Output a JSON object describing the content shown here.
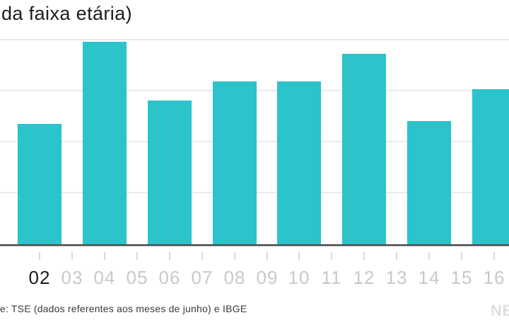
{
  "header": {
    "title": "da faixa etária)"
  },
  "chart_data": {
    "type": "bar",
    "title": "da faixa etária)",
    "x_tick_labels": [
      "02",
      "03",
      "04",
      "05",
      "06",
      "07",
      "08",
      "09",
      "10",
      "11",
      "12",
      "13",
      "14",
      "15",
      "16"
    ],
    "highlighted_tick_label": "02",
    "categories": [
      "02",
      "04",
      "06",
      "08",
      "10",
      "12",
      "14",
      "16"
    ],
    "values": [
      2.36,
      3.97,
      2.82,
      3.19,
      3.19,
      3.74,
      2.42,
      3.04
    ],
    "value_unit": "gridline intervals (y-axis scale cropped out of frame)",
    "ylim": [
      0,
      4.2
    ],
    "grid": true,
    "gridline_count": 4,
    "legend": "none",
    "bar_color": "#2ac4ca"
  },
  "footer": {
    "source": "e: TSE (dados referentes aos meses de junho) e IBGE",
    "watermark": "NE"
  },
  "colors": {
    "bar": "#2ac4ca",
    "grid": "#eaeaea",
    "axis": "#4b4b4e",
    "tick": "#d9d9d9",
    "label_muted": "#c9c9c9",
    "label_active": "#191919",
    "title": "#1d1d1d",
    "source_text": "#3b3b3b",
    "watermark": "#e0e0e0"
  }
}
